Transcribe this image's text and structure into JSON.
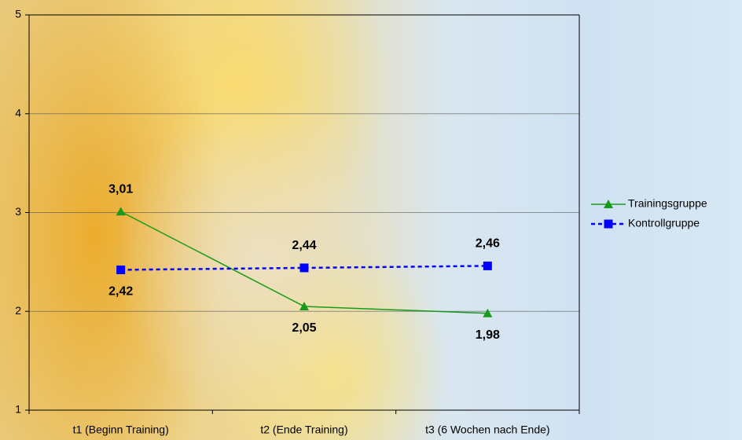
{
  "chart_data": {
    "type": "line",
    "categories": [
      "t1 (Beginn Training)",
      "t2 (Ende Training)",
      "t3 (6 Wochen nach Ende)"
    ],
    "series": [
      {
        "name": "Trainingsgruppe",
        "color": "#1a9a1a",
        "marker": "triangle",
        "line_style": "solid",
        "values": [
          3.01,
          2.05,
          1.98
        ],
        "value_labels": [
          "3,01",
          "2,05",
          "1,98"
        ]
      },
      {
        "name": "Kontrollgruppe",
        "color": "#0000ff",
        "marker": "square",
        "line_style": "dashed",
        "values": [
          2.42,
          2.44,
          2.46
        ],
        "value_labels": [
          "2,42",
          "2,44",
          "2,46"
        ]
      }
    ],
    "ylim": [
      1,
      5
    ],
    "yticks": [
      1,
      2,
      3,
      4,
      5
    ],
    "grid": true,
    "legend": "right"
  }
}
